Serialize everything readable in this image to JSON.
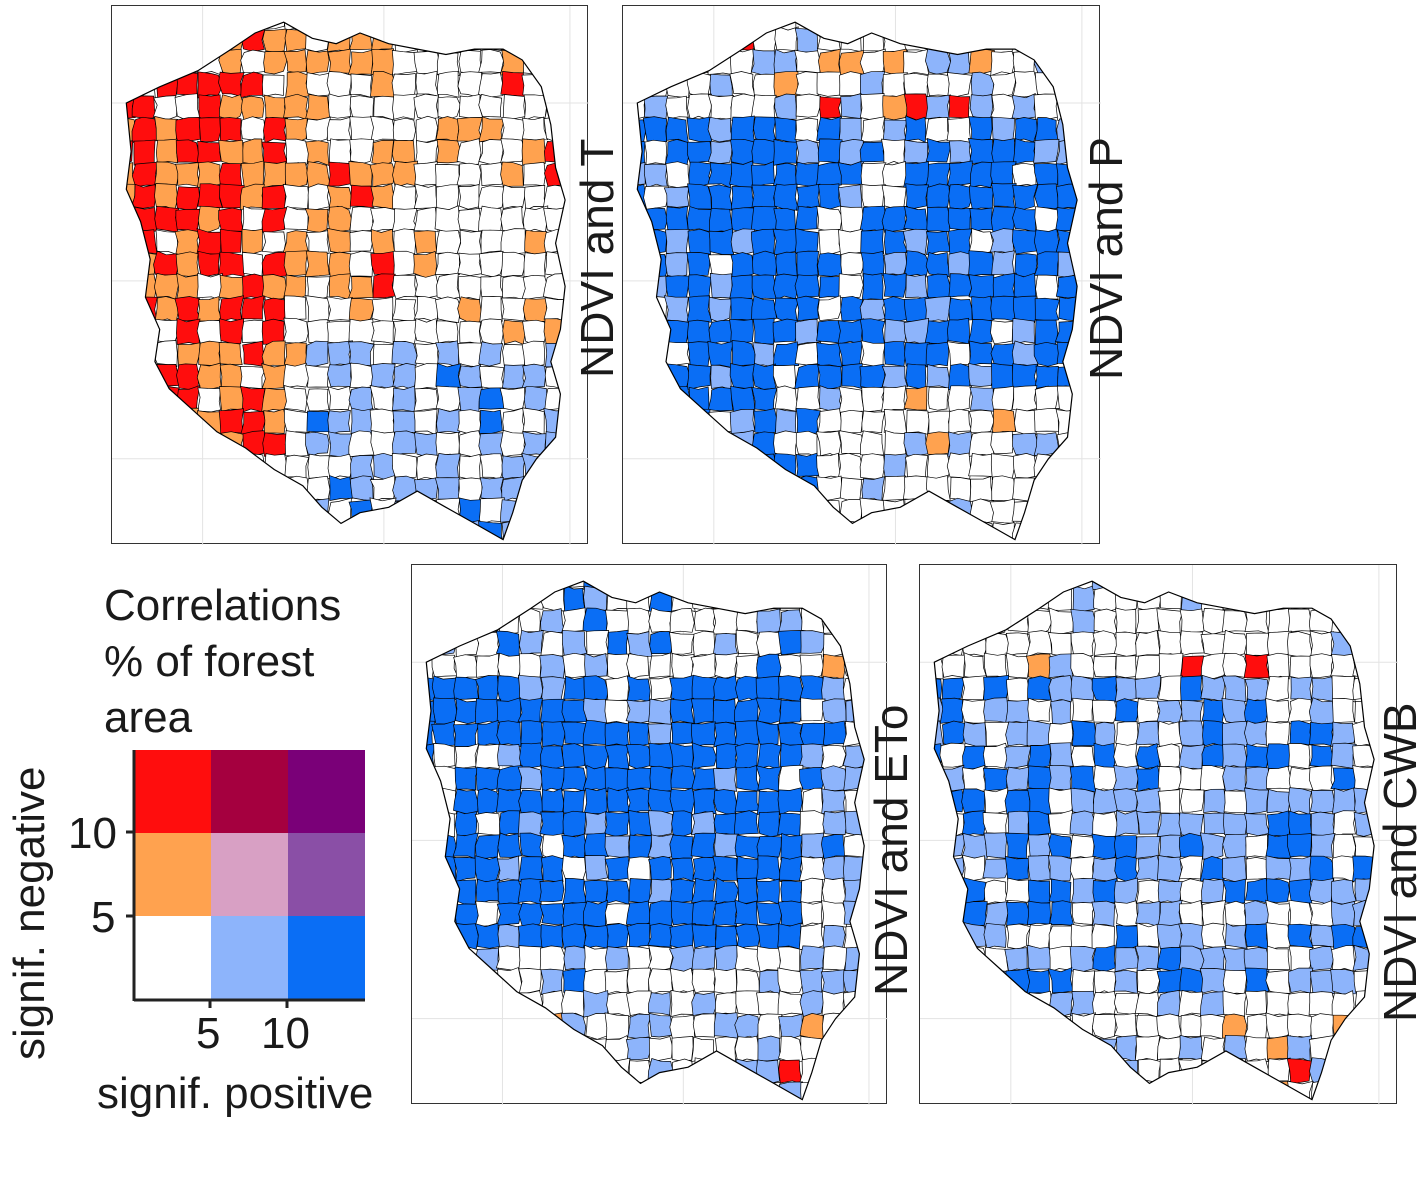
{
  "panels": [
    {
      "id": "t",
      "label": "NDVI and T",
      "stats": {
        "red": 0.14,
        "orange": 0.2,
        "light_blue": 0.12,
        "blue": 0.01,
        "pink": 0.01,
        "purple": 0.005
      }
    },
    {
      "id": "p",
      "label": "NDVI and P",
      "stats": {
        "red": 0.01,
        "orange": 0.03,
        "light_blue": 0.16,
        "blue": 0.5,
        "pink": 0.0,
        "purple": 0.0
      }
    },
    {
      "id": "eto",
      "label": "NDVI and ETo",
      "stats": {
        "red": 0.01,
        "orange": 0.02,
        "light_blue": 0.18,
        "blue": 0.55,
        "pink": 0.01,
        "purple": 0.0
      }
    },
    {
      "id": "cwb",
      "label": "NDVI and CWB",
      "stats": {
        "red": 0.01,
        "orange": 0.02,
        "light_blue": 0.45,
        "blue": 0.2,
        "pink": 0.0,
        "purple": 0.0
      }
    }
  ],
  "legend": {
    "title": [
      "Correlations",
      "% of forest",
      "area"
    ],
    "y_axis_label": "signif. negative",
    "x_axis_label": "signif. positive",
    "y_ticks": [
      "10",
      "5"
    ],
    "x_ticks": [
      "5",
      "10"
    ],
    "grid_colors": [
      [
        "#ff0d0d",
        "#a5003f",
        "#7a0078"
      ],
      [
        "#ffa24f",
        "#d8a0c4",
        "#8a4fa6"
      ],
      [
        "#ffffff",
        "#8db4fb",
        "#0a6ef5"
      ]
    ]
  },
  "colors": {
    "white": "#ffffff",
    "light_blue": "#8db4fb",
    "blue": "#0a6ef5",
    "orange": "#ffa24f",
    "red": "#ff0d0d",
    "pink": "#d8a0c4",
    "purple": "#8a4fa6",
    "border": "#000000",
    "graticule": "#e3e3e3"
  }
}
